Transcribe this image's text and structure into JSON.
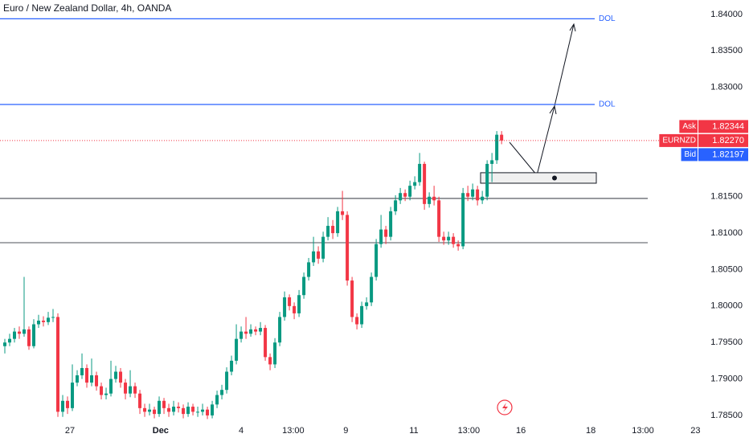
{
  "chart_data": {
    "type": "candlestick",
    "title": "Euro / New Zealand Dollar, 4h, OANDA",
    "open": [
      1.7945,
      1.795,
      1.7955,
      1.7965,
      1.7962,
      1.7968,
      1.7945,
      1.7975,
      1.798,
      1.7978,
      1.7984,
      1.7985,
      1.7855,
      1.787,
      1.786,
      1.7895,
      1.7905,
      1.7915,
      1.7895,
      1.7905,
      1.789,
      1.7878,
      1.788,
      1.79,
      1.791,
      1.7895,
      1.788,
      1.789,
      1.788,
      1.786,
      1.7855,
      1.7858,
      1.7852,
      1.787,
      1.786,
      1.7855,
      1.7862,
      1.786,
      1.7852,
      1.7862,
      1.7855,
      1.7855,
      1.7858,
      1.785,
      1.7865,
      1.7878,
      1.7885,
      1.791,
      1.7925,
      1.7955,
      1.7965,
      1.7962,
      1.7968,
      1.7965,
      1.797,
      1.793,
      1.792,
      1.795,
      1.7985,
      1.8012,
      1.8,
      1.799,
      1.8015,
      1.804,
      1.806,
      1.8075,
      1.8065,
      1.8095,
      1.811,
      1.81,
      1.813,
      1.8125,
      1.8035,
      1.7985,
      1.7975,
      1.8,
      1.8005,
      1.804,
      1.8085,
      1.8105,
      1.8095,
      1.813,
      1.8145,
      1.8155,
      1.815,
      1.8165,
      1.817,
      1.8195,
      1.814,
      1.815,
      1.8145,
      1.8095,
      1.809,
      1.8095,
      1.8085,
      1.8082,
      1.8155,
      1.815,
      1.816,
      1.8145,
      1.815,
      1.8195,
      1.82,
      1.8235
    ],
    "high": [
      1.7955,
      1.7962,
      1.797,
      1.7972,
      1.804,
      1.7972,
      1.7982,
      1.7988,
      1.7986,
      1.7992,
      1.7996,
      1.799,
      1.7878,
      1.7876,
      1.792,
      1.7912,
      1.7935,
      1.792,
      1.7928,
      1.791,
      1.7895,
      1.7888,
      1.7925,
      1.7918,
      1.7915,
      1.79,
      1.7912,
      1.7895,
      1.7885,
      1.7866,
      1.7866,
      1.7862,
      1.7876,
      1.7874,
      1.7866,
      1.787,
      1.7868,
      1.7865,
      1.7868,
      1.7866,
      1.7862,
      1.7866,
      1.7862,
      1.787,
      1.7884,
      1.7892,
      1.7916,
      1.7932,
      1.7975,
      1.7972,
      1.7985,
      1.7975,
      1.7972,
      1.7978,
      1.7974,
      1.7935,
      1.7956,
      1.7992,
      1.802,
      1.8016,
      1.8005,
      1.8022,
      1.8046,
      1.8066,
      1.8095,
      1.8082,
      1.8102,
      1.8122,
      1.8118,
      1.8136,
      1.8158,
      1.813,
      1.804,
      1.799,
      1.8006,
      1.8012,
      1.8046,
      1.8092,
      1.8125,
      1.811,
      1.8136,
      1.8152,
      1.8162,
      1.816,
      1.8172,
      1.8178,
      1.821,
      1.8198,
      1.8156,
      1.8165,
      1.815,
      1.8102,
      1.8102,
      1.81,
      1.809,
      1.8162,
      1.8165,
      1.8168,
      1.8165,
      1.8158,
      1.82,
      1.821,
      1.824,
      1.824
    ],
    "low": [
      1.7935,
      1.7945,
      1.795,
      1.7955,
      1.7958,
      1.794,
      1.7942,
      1.797,
      1.7972,
      1.7974,
      1.7978,
      1.7848,
      1.7848,
      1.7852,
      1.7856,
      1.789,
      1.79,
      1.7888,
      1.789,
      1.7884,
      1.7872,
      1.7872,
      1.7876,
      1.7895,
      1.7888,
      1.7872,
      1.7875,
      1.7874,
      1.7852,
      1.7848,
      1.785,
      1.7846,
      1.7848,
      1.7852,
      1.7848,
      1.785,
      1.7854,
      1.7846,
      1.7848,
      1.785,
      1.7848,
      1.785,
      1.7845,
      1.7846,
      1.786,
      1.7872,
      1.788,
      1.7905,
      1.792,
      1.795,
      1.7955,
      1.7958,
      1.796,
      1.796,
      1.7925,
      1.7912,
      1.7915,
      1.7945,
      1.798,
      1.7994,
      1.7982,
      1.7985,
      1.801,
      1.8035,
      1.8055,
      1.8058,
      1.806,
      1.809,
      1.8092,
      1.8095,
      1.8118,
      1.8028,
      1.7978,
      1.7968,
      1.797,
      1.7995,
      1.8,
      1.8035,
      1.808,
      1.8085,
      1.809,
      1.8125,
      1.814,
      1.8144,
      1.8145,
      1.816,
      1.8165,
      1.8132,
      1.8135,
      1.8138,
      1.8088,
      1.8084,
      1.8084,
      1.808,
      1.8076,
      1.8078,
      1.8144,
      1.8145,
      1.8138,
      1.814,
      1.8145,
      1.817,
      1.8195,
      1.8222
    ],
    "close": [
      1.795,
      1.7955,
      1.7965,
      1.7962,
      1.7968,
      1.7945,
      1.7975,
      1.798,
      1.7978,
      1.7984,
      1.7985,
      1.7855,
      1.787,
      1.786,
      1.7895,
      1.7905,
      1.7915,
      1.7895,
      1.7905,
      1.789,
      1.7878,
      1.788,
      1.79,
      1.791,
      1.7895,
      1.788,
      1.789,
      1.788,
      1.786,
      1.7855,
      1.7858,
      1.7852,
      1.787,
      1.786,
      1.7855,
      1.7862,
      1.786,
      1.7852,
      1.7862,
      1.7855,
      1.7855,
      1.7858,
      1.785,
      1.7865,
      1.7878,
      1.7885,
      1.791,
      1.7925,
      1.7955,
      1.7965,
      1.7962,
      1.7968,
      1.7965,
      1.797,
      1.793,
      1.792,
      1.795,
      1.7985,
      1.8012,
      1.8,
      1.799,
      1.8015,
      1.804,
      1.806,
      1.8075,
      1.8065,
      1.8095,
      1.811,
      1.81,
      1.813,
      1.8125,
      1.8035,
      1.7985,
      1.7975,
      1.8,
      1.8005,
      1.804,
      1.8085,
      1.8105,
      1.8095,
      1.813,
      1.8145,
      1.8155,
      1.815,
      1.8165,
      1.817,
      1.8195,
      1.814,
      1.815,
      1.8145,
      1.8095,
      1.809,
      1.8095,
      1.8085,
      1.8082,
      1.8155,
      1.815,
      1.816,
      1.8145,
      1.815,
      1.8195,
      1.82,
      1.8235,
      1.8227
    ],
    "up_color": "#089981",
    "down_color": "#f23645",
    "ylim": [
      1.78433,
      1.84198
    ],
    "yticks": [
      {
        "value": 1.84,
        "label": "1.84000"
      },
      {
        "value": 1.835,
        "label": "1.83500"
      },
      {
        "value": 1.83,
        "label": "1.83000"
      },
      {
        "value": 1.815,
        "label": "1.81500"
      },
      {
        "value": 1.81,
        "label": "1.81000"
      },
      {
        "value": 1.805,
        "label": "1.80500"
      },
      {
        "value": 1.8,
        "label": "1.80000"
      },
      {
        "value": 1.795,
        "label": "1.79500"
      },
      {
        "value": 1.79,
        "label": "1.79000"
      },
      {
        "value": 1.785,
        "label": "1.78500"
      }
    ],
    "xlim": [
      -1,
      144.3
    ],
    "xticks": [
      {
        "value": 13.5,
        "label": "27"
      },
      {
        "value": 32.3,
        "label": "Dec"
      },
      {
        "value": 49,
        "label": "4"
      },
      {
        "value": 59.8,
        "label": "13:00"
      },
      {
        "value": 70.7,
        "label": "9"
      },
      {
        "value": 84.8,
        "label": "11"
      },
      {
        "value": 96.2,
        "label": "13:00"
      },
      {
        "value": 107,
        "label": "16"
      },
      {
        "value": 121.5,
        "label": "18"
      },
      {
        "value": 132.3,
        "label": "13:00"
      },
      {
        "value": 143.2,
        "label": "23"
      }
    ],
    "targets": [
      {
        "label": "DOL",
        "value": 1.8394
      },
      {
        "label": "DOL",
        "value": 1.82765
      }
    ],
    "levels": [
      1.81476,
      1.80869
    ],
    "zone": [
      1.81829,
      1.81685
    ],
    "quotes": [
      {
        "name": "Ask",
        "value": 1.82344,
        "label": "1.82344",
        "color": "#f23645"
      },
      {
        "name": "EURNZD",
        "value": 1.8227,
        "label": "1.82270",
        "color": "#f23645"
      },
      {
        "name": "Bid",
        "value": 1.82197,
        "label": "1.82197",
        "color": "#2962ff"
      }
    ]
  }
}
